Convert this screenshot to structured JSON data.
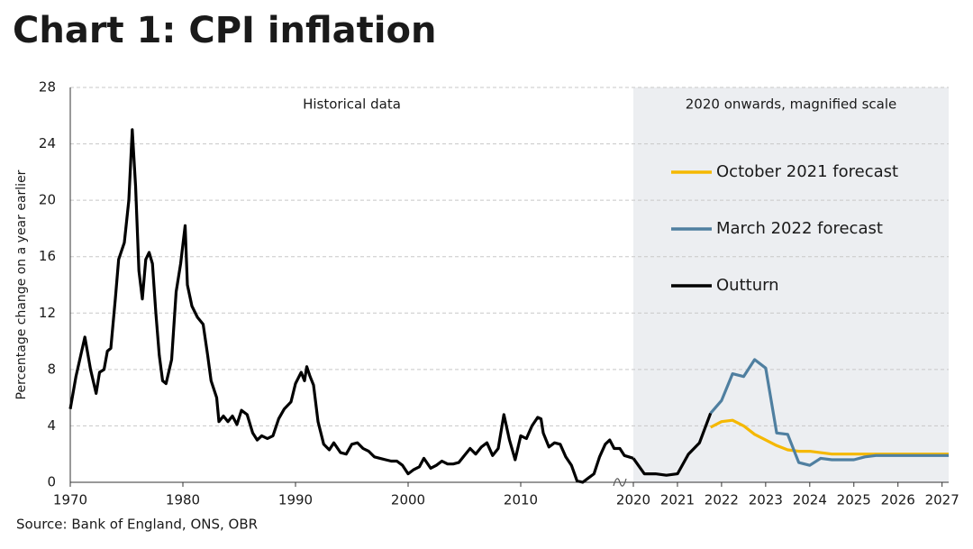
{
  "chart_data": [
    {
      "type": "line",
      "title": "Chart 1: CPI inflation",
      "y_label": "Percentage change on a year earlier",
      "annotation": "Historical data",
      "source": "Source: Bank of England, ONS, OBR",
      "xlim": [
        1970,
        2020
      ],
      "xticks": [
        1970,
        1980,
        1990,
        2000,
        2010
      ],
      "ylim": [
        0,
        28
      ],
      "yticks": [
        0,
        4,
        8,
        12,
        16,
        20,
        24,
        28
      ],
      "grid": true,
      "series": [
        {
          "color": "#000000",
          "x": [
            1970,
            1970.5,
            1971.3,
            1971.8,
            1972.3,
            1972.6,
            1973,
            1973.3,
            1973.6,
            1974,
            1974.3,
            1974.8,
            1975.2,
            1975.5,
            1975.8,
            1976.1,
            1976.4,
            1976.7,
            1977,
            1977.3,
            1977.6,
            1977.9,
            1978.2,
            1978.5,
            1979,
            1979.4,
            1979.8,
            1980.2,
            1980.4,
            1980.8,
            1981.3,
            1981.8,
            1982.2,
            1982.5,
            1983,
            1983.2,
            1983.6,
            1984,
            1984.4,
            1984.8,
            1985.2,
            1985.7,
            1986.2,
            1986.6,
            1987,
            1987.5,
            1988,
            1988.5,
            1989,
            1989.6,
            1990,
            1990.5,
            1990.8,
            1991,
            1991.3,
            1991.6,
            1992,
            1992.5,
            1993,
            1993.4,
            1994,
            1994.5,
            1995,
            1995.5,
            1996,
            1996.5,
            1997,
            1997.5,
            1998,
            1998.5,
            1999,
            1999.5,
            2000,
            2000.5,
            2001,
            2001.4,
            2002,
            2002.5,
            2003,
            2003.5,
            2004,
            2004.5,
            2005,
            2005.5,
            2006,
            2006.5,
            2007,
            2007.5,
            2008,
            2008.5,
            2009,
            2009.5,
            2010,
            2010.5,
            2011,
            2011.5,
            2011.8,
            2012,
            2012.5,
            2013,
            2013.5,
            2014,
            2014.5,
            2015,
            2015.5,
            2016,
            2016.5,
            2017,
            2017.5,
            2017.9,
            2018.3,
            2018.8,
            2019.2,
            2019.6,
            2020
          ],
          "values": [
            5.2,
            7.5,
            10.3,
            8.0,
            6.3,
            7.8,
            8.0,
            9.3,
            9.5,
            13,
            15.8,
            17,
            20,
            25,
            21,
            15,
            13,
            15.8,
            16.3,
            15.5,
            12,
            9,
            7.2,
            7,
            8.7,
            13.5,
            15.5,
            18.2,
            14,
            12.5,
            11.7,
            11.2,
            9,
            7.2,
            6,
            4.3,
            4.7,
            4.3,
            4.7,
            4.1,
            5.1,
            4.8,
            3.5,
            3,
            3.3,
            3.1,
            3.3,
            4.5,
            5.2,
            5.7,
            7,
            7.8,
            7.2,
            8.2,
            7.5,
            6.9,
            4.3,
            2.7,
            2.3,
            2.8,
            2.1,
            2.0,
            2.7,
            2.8,
            2.4,
            2.2,
            1.8,
            1.7,
            1.6,
            1.5,
            1.5,
            1.2,
            0.6,
            0.9,
            1.1,
            1.7,
            1.0,
            1.2,
            1.5,
            1.3,
            1.3,
            1.4,
            1.9,
            2.4,
            2.0,
            2.5,
            2.8,
            1.9,
            2.4,
            4.8,
            3.0,
            1.6,
            3.3,
            3.1,
            4.0,
            4.6,
            4.5,
            3.5,
            2.5,
            2.8,
            2.7,
            1.8,
            1.2,
            0.1,
            0,
            0.3,
            0.6,
            1.8,
            2.7,
            3.0,
            2.4,
            2.4,
            1.9,
            1.8,
            1.7
          ]
        }
      ]
    },
    {
      "type": "line",
      "annotation": "2020 onwards, magnified scale",
      "xlim": [
        2020,
        2027.15
      ],
      "xticks": [
        2020,
        2021,
        2022,
        2023,
        2024,
        2025,
        2026,
        2027
      ],
      "ylim": [
        0,
        28
      ],
      "background": "#eceef1",
      "legend": "upper right",
      "series": [
        {
          "name": "October 2021 forecast",
          "color": "#f5b800",
          "x": [
            2021.75,
            2022,
            2022.25,
            2022.5,
            2022.75,
            2023,
            2023.25,
            2023.5,
            2023.75,
            2024,
            2024.5,
            2025,
            2025.5,
            2026,
            2026.5,
            2027,
            2027.15
          ],
          "values": [
            3.9,
            4.3,
            4.4,
            4.0,
            3.4,
            3.0,
            2.6,
            2.3,
            2.2,
            2.2,
            2.0,
            2.0,
            2.0,
            2.0,
            2.0,
            2.0,
            2.0
          ]
        },
        {
          "name": "March 2022 forecast",
          "color": "#4f7fa0",
          "x": [
            2021.75,
            2022,
            2022.25,
            2022.5,
            2022.75,
            2023,
            2023.25,
            2023.5,
            2023.75,
            2024,
            2024.25,
            2024.5,
            2025,
            2025.25,
            2025.5,
            2026,
            2026.5,
            2027,
            2027.15
          ],
          "values": [
            4.9,
            5.8,
            7.7,
            7.5,
            8.7,
            8.1,
            3.5,
            3.4,
            1.4,
            1.2,
            1.7,
            1.6,
            1.6,
            1.8,
            1.9,
            1.9,
            1.9,
            1.9,
            1.9
          ]
        },
        {
          "name": "Outturn",
          "color": "#000000",
          "x": [
            2020,
            2020.25,
            2020.5,
            2020.75,
            2021,
            2021.25,
            2021.5,
            2021.75
          ],
          "values": [
            1.7,
            0.6,
            0.6,
            0.5,
            0.6,
            2.0,
            2.8,
            4.9
          ]
        }
      ]
    }
  ]
}
